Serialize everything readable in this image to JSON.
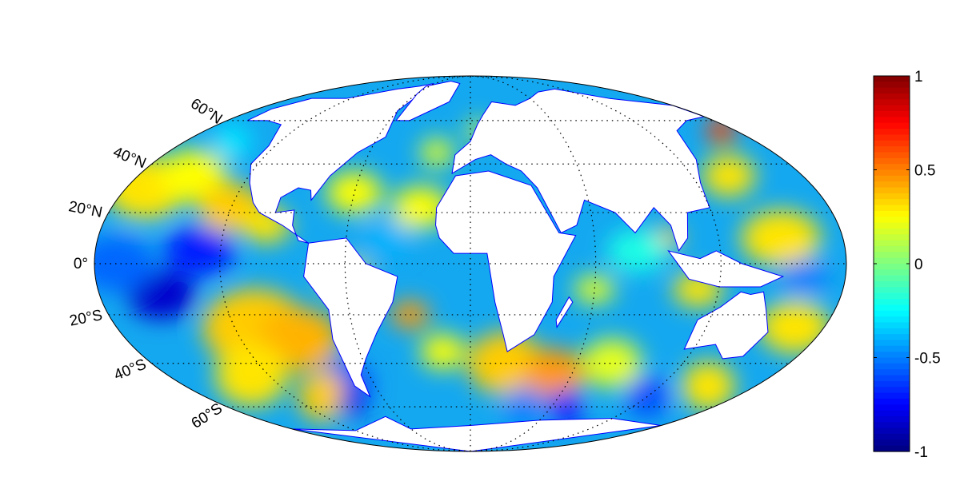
{
  "map": {
    "projection": "mollweide",
    "central_longitude": 0,
    "coastline_color": "#0000ff",
    "land_color": "#ffffff",
    "graticule": "dotted",
    "latitude_labels": [
      {
        "lat": 60,
        "text": "60°N"
      },
      {
        "lat": 40,
        "text": "40°N"
      },
      {
        "lat": 20,
        "text": "20°N"
      },
      {
        "lat": 0,
        "text": "0°"
      },
      {
        "lat": -20,
        "text": "20°S"
      },
      {
        "lat": -40,
        "text": "40°S"
      },
      {
        "lat": -60,
        "text": "60°S"
      }
    ]
  },
  "colorbar": {
    "colormap": "jet",
    "range": [
      -1,
      1
    ],
    "ticks": [
      {
        "value": 1,
        "text": "1"
      },
      {
        "value": 0.5,
        "text": "0.5"
      },
      {
        "value": 0,
        "text": "0"
      },
      {
        "value": -0.5,
        "text": "-0.5"
      },
      {
        "value": -1,
        "text": "-1"
      }
    ],
    "placement": "right"
  }
}
